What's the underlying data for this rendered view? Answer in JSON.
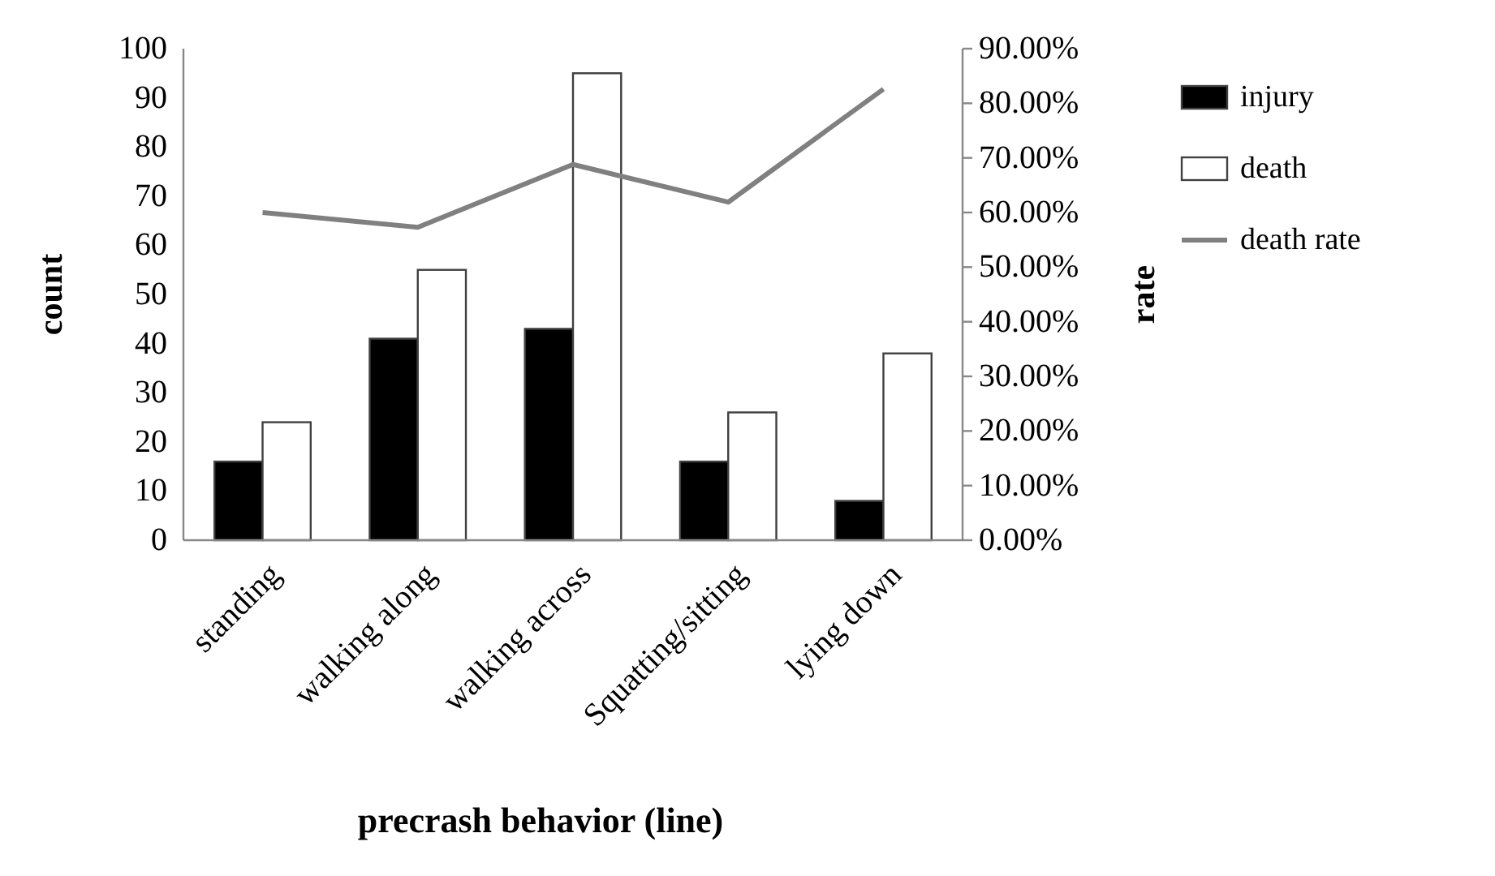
{
  "chart_data": {
    "type": "bar",
    "xlabel": "precrash behavior (line)",
    "ylabel": "count",
    "y2label": "rate",
    "categories": [
      "standing",
      "walking along",
      "walking across",
      "Squatting/sitting",
      "lying down"
    ],
    "series": [
      {
        "name": "injury",
        "color": "#000000",
        "values": [
          16,
          41,
          43,
          16,
          8
        ]
      },
      {
        "name": "death",
        "color": "#ffffff",
        "values": [
          24,
          55,
          95,
          26,
          38
        ]
      },
      {
        "name": "death rate",
        "type": "line",
        "axis": "y2",
        "color": "#808080",
        "values": [
          60,
          57.3,
          68.8,
          61.9,
          82.6
        ]
      }
    ],
    "ylim": [
      0,
      100
    ],
    "yticks": [
      0,
      10,
      20,
      30,
      40,
      50,
      60,
      70,
      80,
      90,
      100
    ],
    "y2lim": [
      0,
      90
    ],
    "y2ticks": [
      {
        "value": 0,
        "label": "0.00%"
      },
      {
        "value": 10,
        "label": "10.00%"
      },
      {
        "value": 20,
        "label": "20.00%"
      },
      {
        "value": 30,
        "label": "30.00%"
      },
      {
        "value": 40,
        "label": "40.00%"
      },
      {
        "value": 50,
        "label": "50.00%"
      },
      {
        "value": 60,
        "label": "60.00%"
      },
      {
        "value": 70,
        "label": "70.00%"
      },
      {
        "value": 80,
        "label": "80.00%"
      },
      {
        "value": 90,
        "label": "90.00%"
      }
    ],
    "legend": "right",
    "grid": false
  }
}
